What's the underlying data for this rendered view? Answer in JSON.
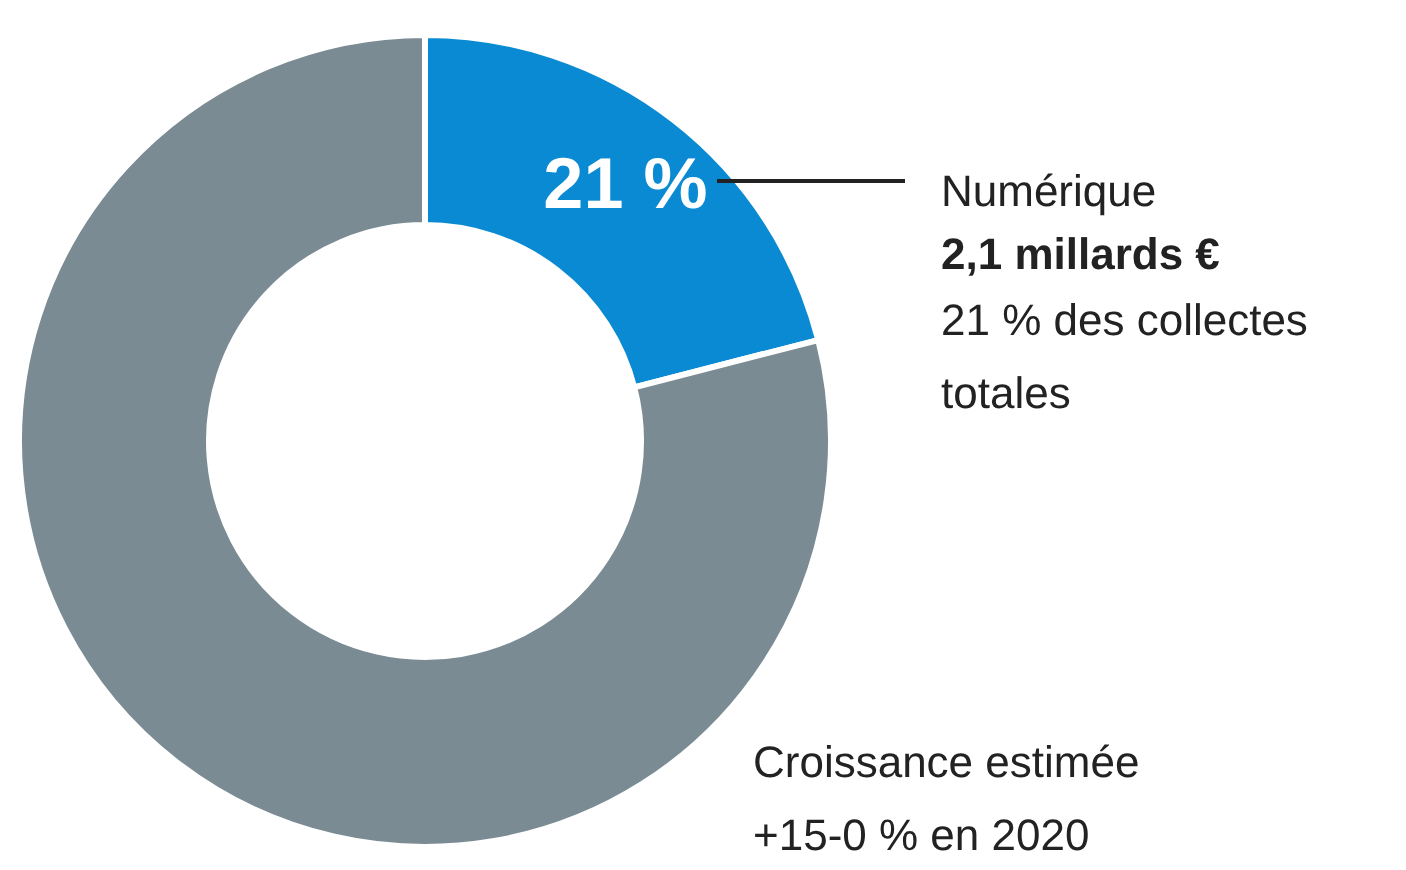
{
  "chart_data": {
    "type": "donut",
    "categories": [
      "Numérique",
      null
    ],
    "values": [
      21,
      79
    ],
    "colors": [
      "#0a8ad2",
      "#7b8b93"
    ],
    "value_labels": [
      "21 %",
      null
    ],
    "annotations": [
      "2,1 millards €",
      "21 % des collectes totales",
      "Croissance estimée +15-0 % en 2020"
    ]
  }
}
